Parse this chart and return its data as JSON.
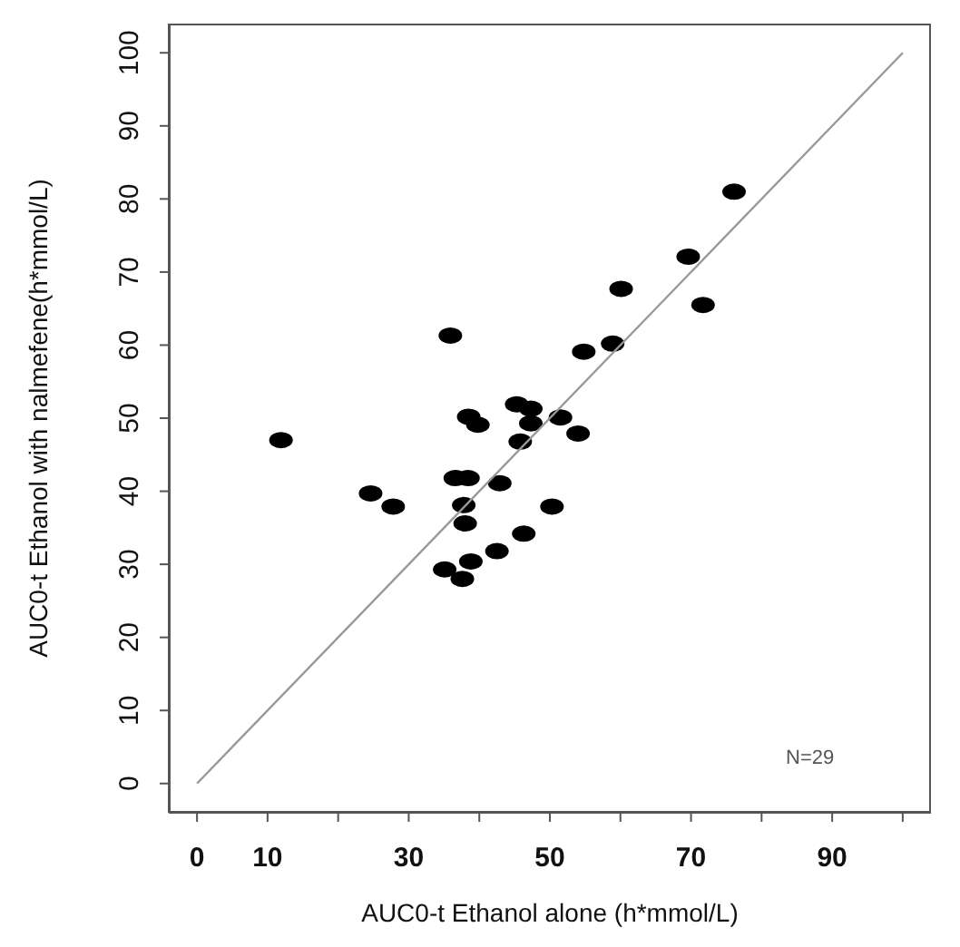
{
  "chart_data": {
    "type": "scatter",
    "xlabel": "AUC0-t Ethanol alone (h*mmol/L)",
    "ylabel": "AUC0-t Ethanol with nalmefene(h*mmol/L)",
    "xlim": [
      -4,
      104
    ],
    "ylim": [
      -4,
      104
    ],
    "xticks": [
      0,
      10,
      {
        "value": 20,
        "label": null
      },
      30,
      {
        "value": 40,
        "label": null
      },
      50,
      {
        "value": 60,
        "label": null
      },
      70,
      {
        "value": 80,
        "label": null
      },
      90,
      {
        "value": 100,
        "label": null
      }
    ],
    "yticks": [
      0,
      10,
      20,
      30,
      40,
      50,
      60,
      70,
      80,
      90,
      100
    ],
    "grid": false,
    "legend": false,
    "annotations": [
      "N=29"
    ],
    "series": [
      {
        "color": "#000000",
        "marker": "circle",
        "x": [
          11.9,
          24.6,
          27.8,
          35.9,
          35.1,
          37.6,
          38.8,
          36.6,
          38.4,
          37.8,
          38.0,
          38.5,
          39.8,
          42.5,
          42.9,
          45.3,
          47.3,
          47.3,
          45.8,
          46.3,
          50.3,
          51.5,
          54.0,
          54.8,
          58.9,
          60.1,
          69.6,
          71.7,
          76.1
        ],
        "values": [
          47.0,
          39.7,
          37.9,
          61.3,
          29.3,
          28.0,
          30.4,
          41.8,
          41.8,
          38.1,
          35.6,
          50.2,
          49.1,
          31.8,
          41.1,
          51.9,
          51.3,
          49.3,
          46.8,
          34.2,
          37.9,
          50.1,
          47.9,
          59.1,
          60.2,
          67.7,
          72.1,
          65.5,
          81.0
        ]
      },
      {
        "type": "line",
        "color": "#999999",
        "marker": "none",
        "line_style": "solid",
        "x": [
          0,
          100
        ],
        "values": [
          0,
          100
        ]
      }
    ]
  }
}
